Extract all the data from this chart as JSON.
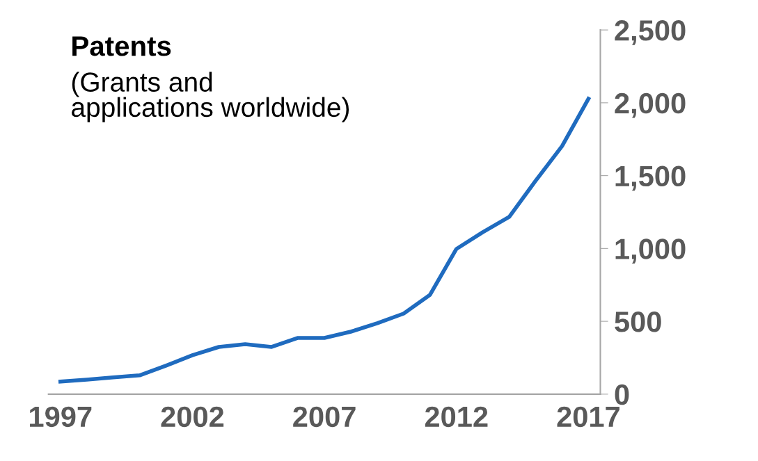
{
  "chart_data": {
    "type": "line",
    "title": "Patents",
    "subtitle": "(Grants and\napplications worldwide)",
    "x": [
      1997,
      1998,
      1999,
      2000,
      2001,
      2002,
      2003,
      2004,
      2005,
      2006,
      2007,
      2008,
      2009,
      2010,
      2011,
      2012,
      2013,
      2014,
      2015,
      2016,
      2017
    ],
    "series": [
      {
        "color": "#1f6bbf",
        "values": [
          86,
          100,
          115,
          129,
          196,
          267,
          324,
          343,
          324,
          386,
          386,
          429,
          487,
          553,
          682,
          997,
          1112,
          1217,
          1465,
          1703,
          2028
        ]
      }
    ],
    "xlim": [
      1996.55,
      2017.45
    ],
    "xticks": [
      1997,
      2002,
      2007,
      2012,
      2017
    ],
    "ylim": [
      0,
      2500
    ],
    "yticks": [
      0,
      {
        "value": 500,
        "label": "500"
      },
      {
        "value": 1000,
        "label": "1,000"
      },
      {
        "value": 1500,
        "label": "1,500"
      },
      {
        "value": 2000,
        "label": "2,000"
      },
      {
        "value": 2500,
        "label": "2,500"
      }
    ],
    "grid": false,
    "marker": "none",
    "line_style": "solid"
  }
}
